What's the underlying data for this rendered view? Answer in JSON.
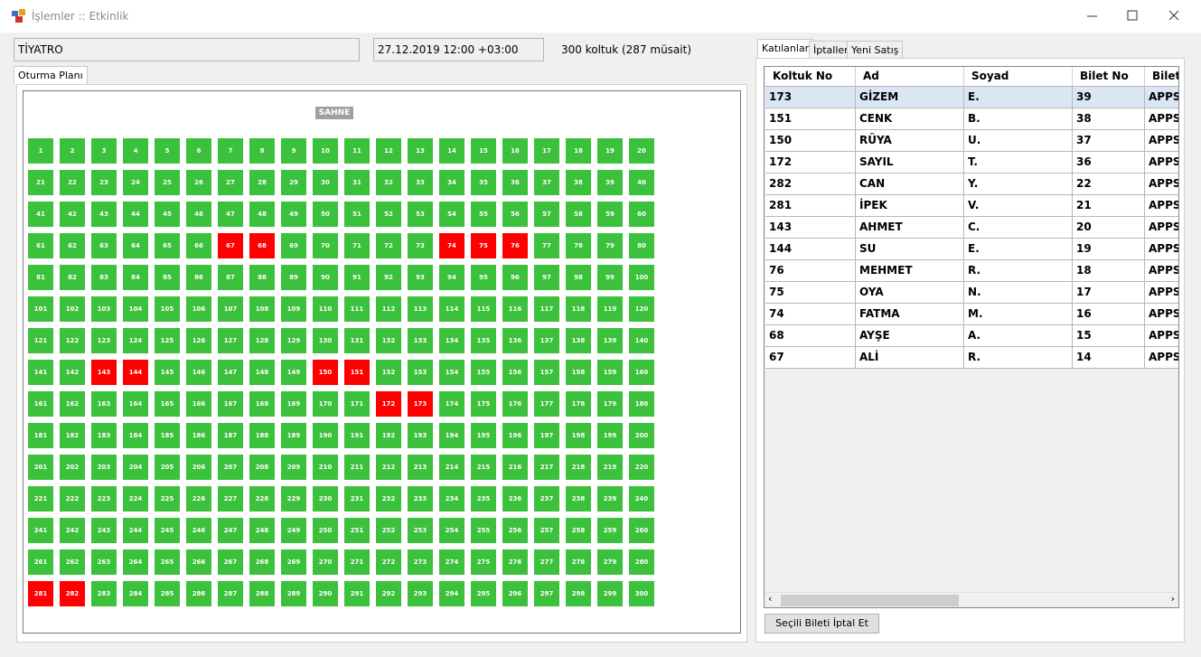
{
  "window": {
    "title": "İşlemler :: Etkinlik"
  },
  "event": {
    "name": "TİYATRO",
    "date": "27.12.2019 12:00 +03:00",
    "capacity": "300 koltuk (287 müsait)"
  },
  "left_tabs": [
    "Oturma Planı"
  ],
  "seat_plan": {
    "stage": "SAHNE",
    "seats": [
      1,
      2,
      3,
      4,
      5,
      6,
      7,
      8,
      9,
      10,
      11,
      12,
      13,
      14,
      15,
      16,
      17,
      18,
      19,
      20,
      21,
      22,
      23,
      24,
      25,
      26,
      27,
      28,
      29,
      30,
      31,
      32,
      33,
      34,
      35,
      36,
      37,
      38,
      39,
      40,
      41,
      42,
      43,
      44,
      45,
      46,
      47,
      48,
      49,
      50,
      51,
      52,
      53,
      54,
      55,
      56,
      57,
      58,
      59,
      60,
      61,
      62,
      63,
      64,
      65,
      66,
      67,
      68,
      69,
      70,
      71,
      72,
      73,
      74,
      75,
      76,
      77,
      78,
      79,
      80,
      81,
      82,
      83,
      84,
      85,
      86,
      87,
      88,
      89,
      90,
      91,
      92,
      93,
      94,
      95,
      96,
      97,
      98,
      99,
      100,
      101,
      102,
      103,
      104,
      105,
      106,
      107,
      108,
      109,
      110,
      111,
      112,
      113,
      114,
      115,
      116,
      117,
      118,
      119,
      120,
      121,
      122,
      123,
      124,
      125,
      126,
      127,
      128,
      129,
      130,
      131,
      132,
      133,
      134,
      135,
      136,
      137,
      138,
      139,
      140,
      141,
      142,
      143,
      144,
      145,
      146,
      147,
      148,
      149,
      150,
      151,
      152,
      153,
      154,
      155,
      156,
      157,
      158,
      159,
      160,
      161,
      162,
      163,
      164,
      165,
      166,
      167,
      168,
      169,
      170,
      171,
      172,
      173,
      174,
      175,
      176,
      177,
      178,
      179,
      180,
      181,
      182,
      183,
      184,
      185,
      186,
      187,
      188,
      189,
      190,
      191,
      192,
      193,
      194,
      195,
      196,
      197,
      198,
      199,
      200,
      201,
      202,
      203,
      204,
      205,
      206,
      207,
      208,
      209,
      210,
      211,
      212,
      213,
      214,
      215,
      216,
      217,
      218,
      219,
      220,
      221,
      222,
      223,
      224,
      225,
      226,
      227,
      228,
      229,
      230,
      231,
      232,
      233,
      234,
      235,
      236,
      237,
      238,
      239,
      240,
      241,
      242,
      243,
      244,
      245,
      246,
      247,
      248,
      249,
      250,
      251,
      252,
      253,
      254,
      255,
      256,
      257,
      258,
      259,
      260,
      261,
      262,
      263,
      264,
      265,
      266,
      267,
      268,
      269,
      270,
      271,
      272,
      273,
      274,
      275,
      276,
      277,
      278,
      279,
      280,
      281,
      282,
      283,
      284,
      285,
      286,
      287,
      288,
      289,
      290,
      291,
      292,
      293,
      294,
      295,
      296,
      297,
      298,
      299,
      300
    ],
    "sold": [
      67,
      68,
      74,
      75,
      76,
      143,
      144,
      150,
      151,
      172,
      173,
      281,
      282
    ],
    "free_color": "#3cc13c",
    "sold_color": "#ff0000"
  },
  "right_tabs": [
    "Katılanlar",
    "İptaller",
    "Yeni Satış"
  ],
  "table": {
    "columns": [
      "Koltuk No",
      "Ad",
      "Soyad",
      "Bilet No",
      "Bilet"
    ],
    "rows": [
      [
        "173",
        "GİZEM",
        "E.",
        "39",
        "APPS"
      ],
      [
        "151",
        "CENK",
        "B.",
        "38",
        "APPS"
      ],
      [
        "150",
        "RÜYA",
        "U.",
        "37",
        "APPS"
      ],
      [
        "172",
        "SAYIL",
        "T.",
        "36",
        "APPS"
      ],
      [
        "282",
        "CAN",
        "Y.",
        "22",
        "APPS"
      ],
      [
        "281",
        "İPEK",
        "V.",
        "21",
        "APPS"
      ],
      [
        "143",
        "AHMET",
        "C.",
        "20",
        "APPS"
      ],
      [
        "144",
        "SU",
        "E.",
        "19",
        "APPS"
      ],
      [
        "76",
        "MEHMET",
        "R.",
        "18",
        "APPS"
      ],
      [
        "75",
        "OYA",
        "N.",
        "17",
        "APPS"
      ],
      [
        "74",
        "FATMA",
        "M.",
        "16",
        "APPS"
      ],
      [
        "68",
        "AYŞE",
        "A.",
        "15",
        "APPS"
      ],
      [
        "67",
        "ALİ",
        "R.",
        "14",
        "APPS"
      ]
    ]
  },
  "button": "Seçili Bileti İptal Et"
}
